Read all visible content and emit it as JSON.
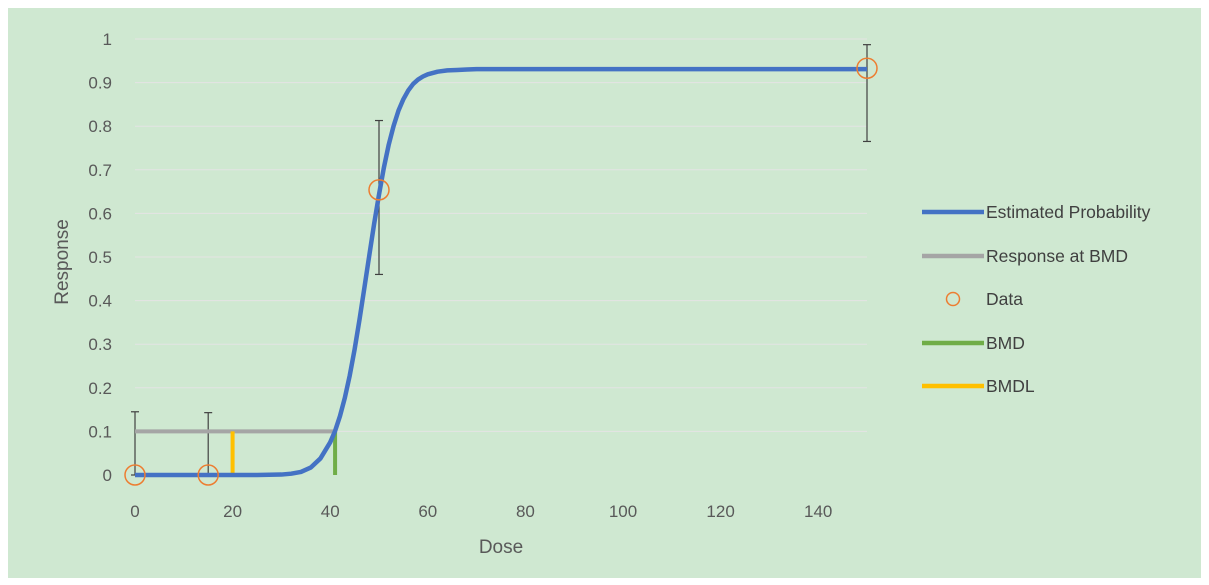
{
  "chart_data": {
    "type": "line",
    "xlabel": "Dose",
    "ylabel": "Response",
    "xlim": [
      0,
      150
    ],
    "ylim": [
      0,
      1
    ],
    "x_ticks": [
      0,
      20,
      40,
      60,
      80,
      100,
      120,
      140
    ],
    "y_ticks": [
      0,
      0.1,
      0.2,
      0.3,
      0.4,
      0.5,
      0.6,
      0.7,
      0.8,
      0.9,
      1
    ],
    "y_tick_labels": [
      "0",
      "0.1",
      "0.2",
      "0.3",
      "0.4",
      "0.5",
      "0.6",
      "0.7",
      "0.8",
      "0.9",
      "1"
    ],
    "grid": "horizontal",
    "legend_position": "right",
    "background_color": "#cfe8d1",
    "series": [
      {
        "name": "Estimated Probability",
        "kind": "line",
        "color": "#4472c4",
        "x": [
          0,
          10,
          20,
          25,
          30,
          32,
          34,
          36,
          38,
          40,
          41,
          42,
          43,
          44,
          45,
          46,
          47,
          48,
          49,
          50,
          51,
          52,
          53,
          54,
          55,
          56,
          57,
          58,
          59,
          60,
          62,
          64,
          66,
          68,
          70,
          75,
          80,
          100,
          120,
          150
        ],
        "y": [
          0,
          0,
          0,
          0,
          0.001,
          0.003,
          0.007,
          0.017,
          0.038,
          0.075,
          0.101,
          0.135,
          0.177,
          0.228,
          0.288,
          0.356,
          0.429,
          0.503,
          0.576,
          0.643,
          0.705,
          0.758,
          0.801,
          0.836,
          0.862,
          0.882,
          0.897,
          0.907,
          0.914,
          0.919,
          0.925,
          0.928,
          0.929,
          0.93,
          0.931,
          0.931,
          0.931,
          0.931,
          0.931,
          0.931
        ]
      },
      {
        "name": "Response at BMD",
        "kind": "line",
        "color": "#a5a5a5",
        "x": [
          0,
          41
        ],
        "y": [
          0.1,
          0.1
        ]
      },
      {
        "name": "Data",
        "kind": "scatter",
        "color": "#ed7d31",
        "x": [
          0,
          15,
          50,
          150
        ],
        "y": [
          0,
          0,
          0.654,
          0.933
        ],
        "y_err_low": [
          0,
          0,
          0.46,
          0.765
        ],
        "y_err_high": [
          0.145,
          0.143,
          0.813,
          0.987
        ]
      },
      {
        "name": "BMD",
        "kind": "vertical-line",
        "color": "#70ad47",
        "x": [
          41,
          41
        ],
        "y": [
          0,
          0.1
        ]
      },
      {
        "name": "BMDL",
        "kind": "vertical-line",
        "color": "#ffc000",
        "x": [
          20,
          20
        ],
        "y": [
          0,
          0.1
        ]
      }
    ]
  }
}
